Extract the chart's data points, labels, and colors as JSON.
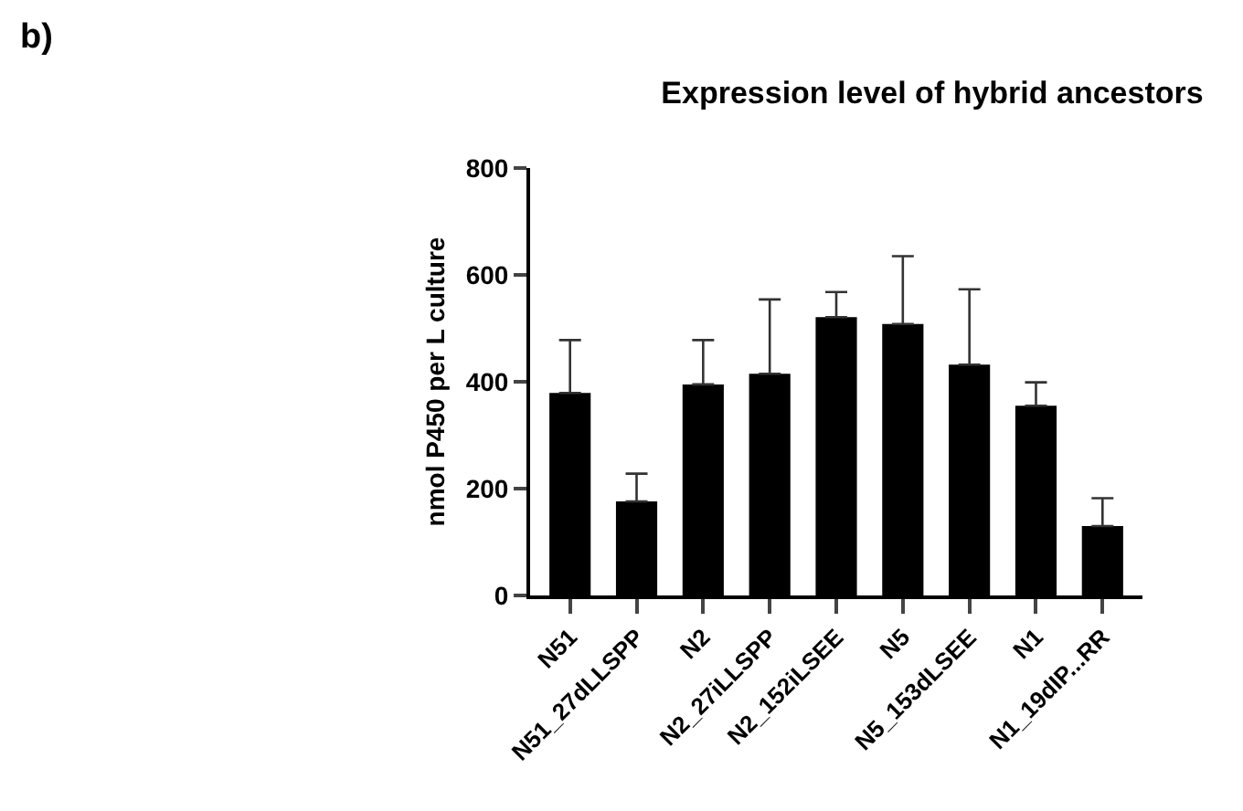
{
  "chart_data": {
    "type": "bar",
    "title": "Expression level of hybrid ancestors",
    "ylabel": "nmol P450 per L culture",
    "annotations": [
      "b)"
    ],
    "categories": [
      "N51",
      "N51_27dLLSPP",
      "N2",
      "N2_27iLLSPP",
      "N2_152iLSEE",
      "N5",
      "N5_153dLSEE",
      "N1",
      "N1_19dIP...RR"
    ],
    "values": [
      379,
      176,
      395,
      415,
      521,
      508,
      432,
      355,
      130
    ],
    "errors": [
      [
        379,
        478
      ],
      [
        176,
        228
      ],
      [
        395,
        478
      ],
      [
        415,
        554
      ],
      [
        521,
        568
      ],
      [
        508,
        635
      ],
      [
        432,
        573
      ],
      [
        355,
        399
      ],
      [
        130,
        182
      ]
    ],
    "color": "#000000",
    "ylim": [
      0,
      800
    ],
    "yticks": [
      0,
      200,
      400,
      600,
      800
    ]
  }
}
